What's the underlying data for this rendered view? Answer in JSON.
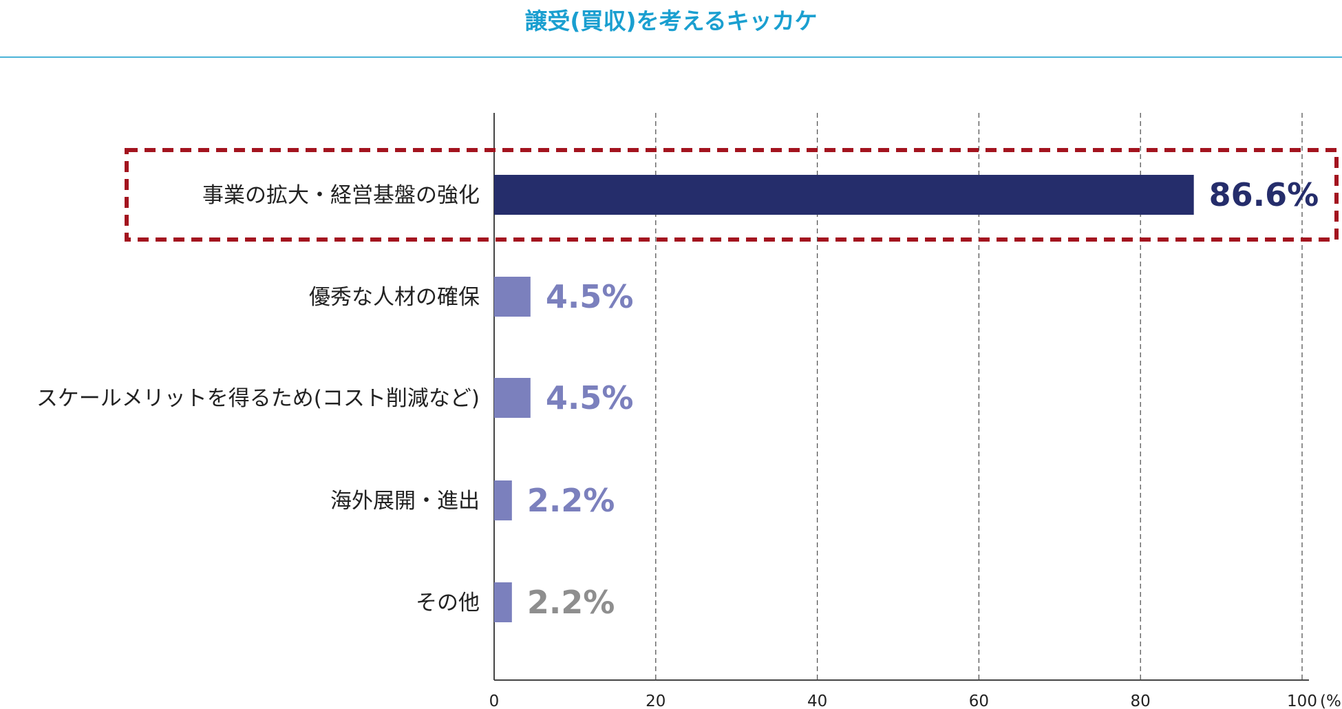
{
  "chart_data": {
    "type": "bar",
    "orientation": "horizontal",
    "title": "譲受(買収)を考えるキッカケ",
    "categories": [
      "事業の拡大・経営基盤の強化",
      "優秀な人材の確保",
      "スケールメリットを得るため(コスト削減など)",
      "海外展開・進出",
      "その他"
    ],
    "values": [
      86.6,
      4.5,
      4.5,
      2.2,
      2.2
    ],
    "value_labels": [
      "86.6%",
      "4.5%",
      "4.5%",
      "2.2%",
      "2.2%"
    ],
    "xlim": [
      0,
      100
    ],
    "x_ticks": [
      "0",
      "20",
      "40",
      "60",
      "80",
      "100"
    ],
    "x_unit": "(%)",
    "grid": "vertical dashed",
    "highlighted_category": "事業の拡大・経営基盤の強化",
    "colors": {
      "title": "#1a9fd0",
      "title_rule": "#4ab3d8",
      "highlight_bar": "#252d6b",
      "other_bars": "#7b80bd",
      "other_label": "#8e8e8e",
      "highlight_box": "#a3141f",
      "grid": "#555555",
      "axis": "#444444"
    },
    "bar_colors": [
      "#252d6b",
      "#7b80bd",
      "#7b80bd",
      "#7b80bd",
      "#7b80bd"
    ],
    "label_colors": [
      "#252d6b",
      "#7b80bd",
      "#7b80bd",
      "#7b80bd",
      "#8e8e8e"
    ]
  }
}
